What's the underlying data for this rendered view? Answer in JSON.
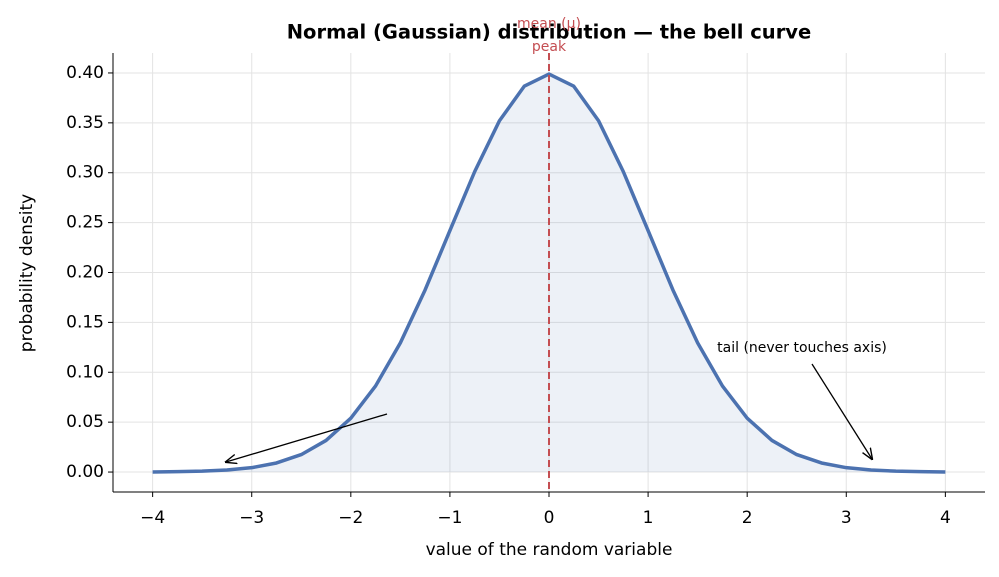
{
  "chart_data": {
    "type": "line",
    "title": "Normal (Gaussian) distribution — the bell curve",
    "x_label": "value of the random variable",
    "y_label": "probability density",
    "x": [
      -4,
      -3.75,
      -3.5,
      -3.25,
      -3,
      -2.75,
      -2.5,
      -2.25,
      -2,
      -1.75,
      -1.5,
      -1.25,
      -1,
      -0.75,
      -0.5,
      -0.25,
      0,
      0.25,
      0.5,
      0.75,
      1,
      1.25,
      1.5,
      1.75,
      2,
      2.25,
      2.5,
      2.75,
      3,
      3.25,
      3.5,
      3.75,
      4
    ],
    "series": [
      {
        "color": "#4c72b0",
        "values": [
          0.0001,
          0.0004,
          0.0009,
          0.002,
          0.0044,
          0.0091,
          0.0175,
          0.0317,
          0.054,
          0.0863,
          0.1295,
          0.1826,
          0.242,
          0.3011,
          0.3521,
          0.3867,
          0.3989,
          0.3867,
          0.3521,
          0.3011,
          0.242,
          0.1826,
          0.1295,
          0.0863,
          0.054,
          0.0317,
          0.0175,
          0.0091,
          0.0044,
          0.002,
          0.0009,
          0.0004,
          0.0001
        ]
      }
    ],
    "xlim": [
      -4.4,
      4.4
    ],
    "ylim": [
      -0.02,
      0.42
    ],
    "xticks": [
      {
        "value": -4,
        "label": "−4"
      },
      {
        "value": -3,
        "label": "−3"
      },
      {
        "value": -2,
        "label": "−2"
      },
      {
        "value": -1,
        "label": "−1"
      },
      0,
      1,
      2,
      3,
      4
    ],
    "yticks": [
      {
        "value": 0,
        "label": "0.00"
      },
      {
        "value": 0.05,
        "label": "0.05"
      },
      {
        "value": 0.1,
        "label": "0.10"
      },
      {
        "value": 0.15,
        "label": "0.15"
      },
      {
        "value": 0.2,
        "label": "0.20"
      },
      {
        "value": 0.25,
        "label": "0.25"
      },
      {
        "value": 0.3,
        "label": "0.30"
      },
      {
        "value": 0.35,
        "label": "0.35"
      },
      {
        "value": 0.4,
        "label": "0.40"
      }
    ],
    "grid": true,
    "mean_line": {
      "x": 0,
      "color": "#c44e52",
      "label": "mean (μ)"
    },
    "annotations": [
      "peak",
      "tail (never touches axis)"
    ]
  }
}
